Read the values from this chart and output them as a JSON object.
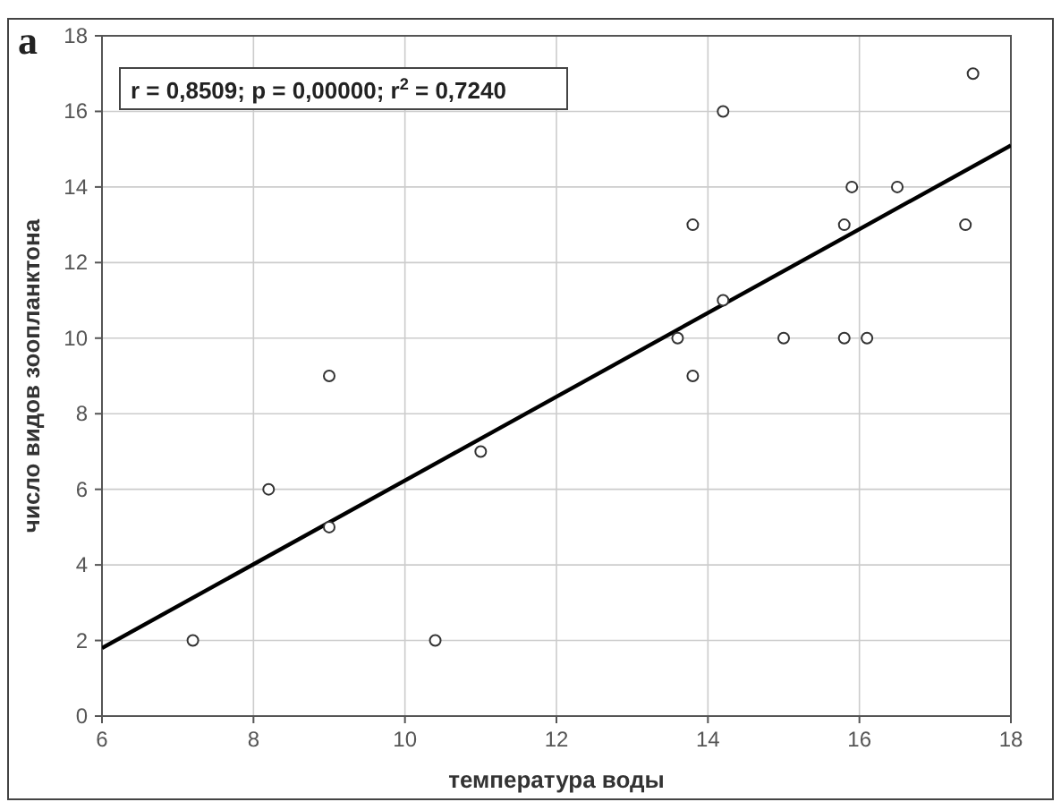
{
  "chart_data": {
    "type": "scatter",
    "xlabel": "температура воды",
    "ylabel": "число видов зоопланктона",
    "annotations": [
      "a",
      "r = 0,8509; p = 0,00000; r$^{2}$ = 0,7240"
    ],
    "series": [
      {
        "color": "#333333",
        "marker": "circle",
        "x": [
          7.2,
          8.2,
          9,
          9,
          10.4,
          11,
          13.6,
          13.8,
          13.8,
          14.2,
          14.2,
          15,
          15.8,
          15.8,
          15.9,
          16.1,
          16.5,
          17.4,
          17.5
        ],
        "values": [
          2,
          6,
          9,
          5,
          2,
          7,
          10,
          13,
          9,
          16,
          11,
          10,
          13,
          10,
          14,
          10,
          14,
          13,
          17
        ]
      },
      {
        "type": "line",
        "color": "#000000",
        "marker": "none",
        "line_style": "solid",
        "x": [
          6,
          18
        ],
        "values": [
          1.8,
          15.1
        ]
      }
    ],
    "xlim": [
      6,
      18
    ],
    "xticks": [
      6,
      8,
      10,
      12,
      14,
      16,
      18
    ],
    "ylim": [
      0,
      18
    ],
    "yticks": [
      0,
      2,
      4,
      6,
      8,
      10,
      12,
      14,
      16,
      18
    ],
    "grid": true
  }
}
